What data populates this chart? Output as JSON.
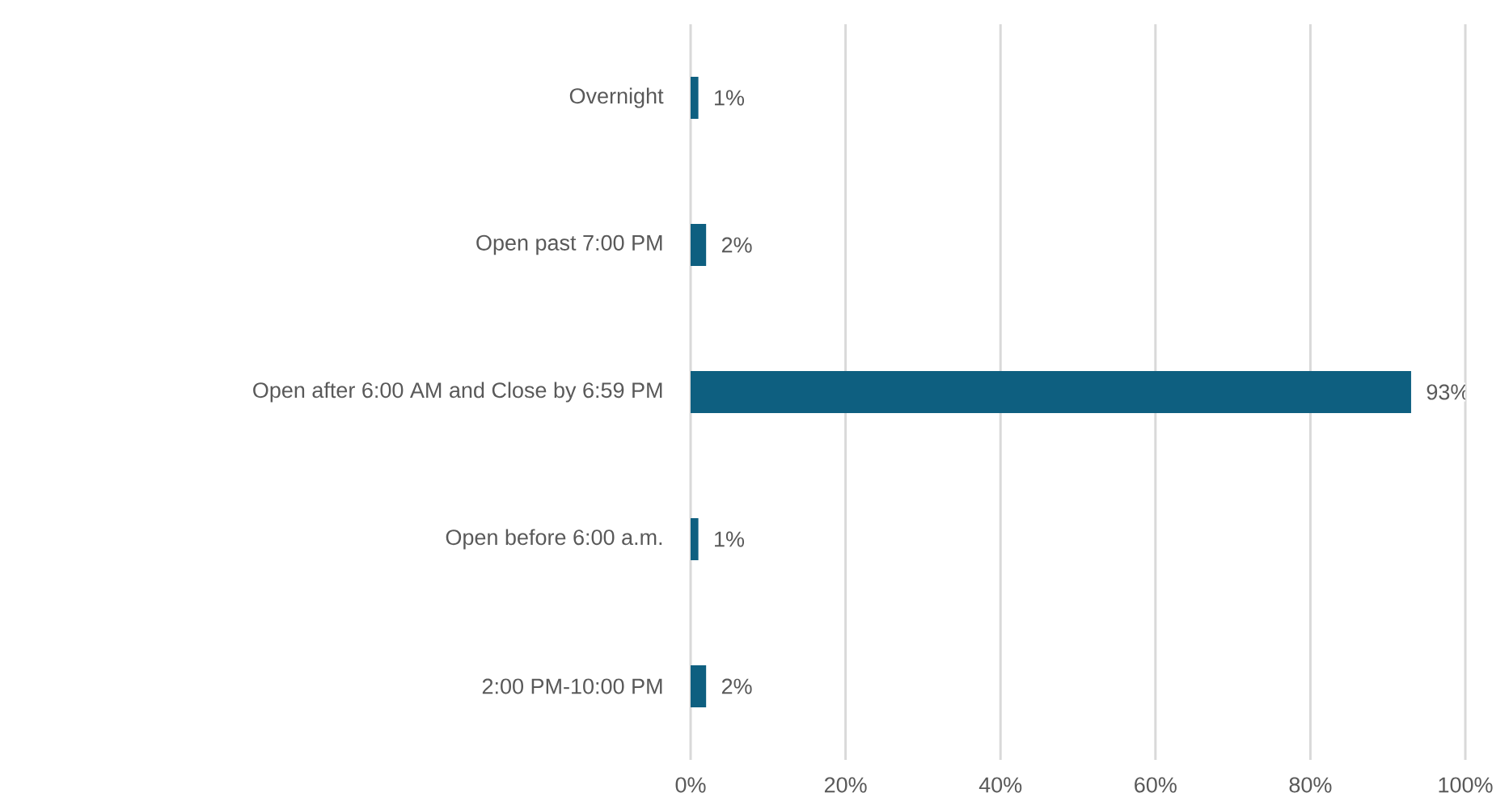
{
  "chart_data": {
    "type": "bar",
    "orientation": "horizontal",
    "categories": [
      "Overnight",
      "Open past 7:00 PM",
      "Open after 6:00 AM and Close by 6:59 PM",
      "Open before 6:00 a.m.",
      "2:00 PM-10:00 PM"
    ],
    "values": [
      1,
      2,
      93,
      1,
      2
    ],
    "value_labels": [
      "1%",
      "2%",
      "93%",
      "1%",
      "2%"
    ],
    "color": "#0e5f80",
    "xlim": [
      0,
      100
    ],
    "xticks": [
      {
        "value": 0,
        "label": "0%"
      },
      {
        "value": 20,
        "label": "20%"
      },
      {
        "value": 40,
        "label": "40%"
      },
      {
        "value": 60,
        "label": "60%"
      },
      {
        "value": 80,
        "label": "80%"
      },
      {
        "value": 100,
        "label": "100%"
      }
    ],
    "grid": "x"
  }
}
